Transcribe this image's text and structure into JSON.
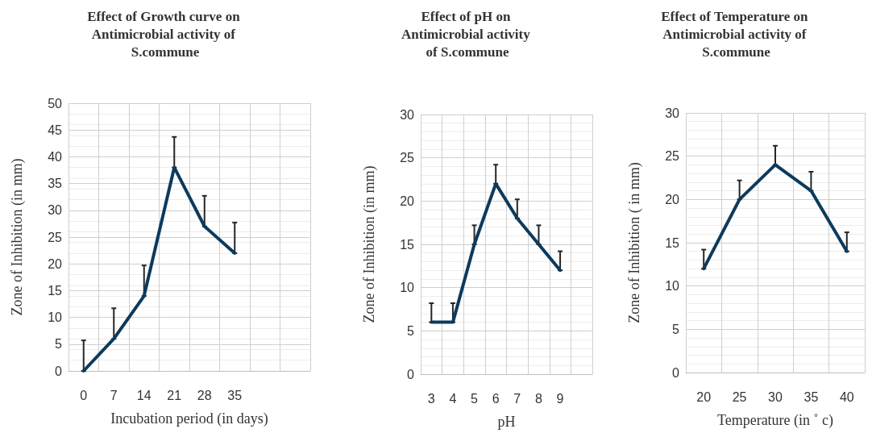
{
  "chart_data": [
    {
      "type": "line",
      "title": "Effect of Growth curve on Antimicrobial activity of S.commune",
      "xlabel": "Incubation period (in days)",
      "ylabel": "Zone of Inhibition (in mm)",
      "categories": [
        "0",
        "7",
        "14",
        "21",
        "28",
        "35",
        null,
        null
      ],
      "series": [
        {
          "color": "#0d3a5c",
          "values": [
            0,
            6,
            14,
            38,
            27,
            22,
            null,
            null
          ],
          "errors": [
            [
              0,
              5.7
            ],
            [
              6,
              11.7
            ],
            [
              14,
              19.7
            ],
            [
              38,
              43.7
            ],
            [
              27,
              32.7
            ],
            [
              22,
              27.7
            ],
            null,
            null
          ]
        }
      ],
      "ylim": [
        0,
        50
      ],
      "yticks": [
        0,
        5,
        10,
        15,
        20,
        25,
        30,
        35,
        40,
        45,
        50
      ],
      "grid": true,
      "marker": "none",
      "line_style": "solid"
    },
    {
      "type": "line",
      "title": "Effect of pH on Antimicrobial activity of S.commune",
      "xlabel": "pH",
      "ylabel": "Zone of Inhibition (in mm)",
      "categories": [
        "3",
        "4",
        "5",
        "6",
        "7",
        "8",
        "9",
        null
      ],
      "series": [
        {
          "color": "#0d3a5c",
          "values": [
            6,
            6,
            15,
            22,
            18,
            15,
            12,
            null
          ],
          "errors": [
            [
              6,
              8.2
            ],
            [
              6,
              8.2
            ],
            [
              15,
              17.2
            ],
            [
              22,
              24.2
            ],
            [
              18,
              20.2
            ],
            [
              15,
              17.2
            ],
            [
              12,
              14.2
            ],
            null
          ]
        }
      ],
      "ylim": [
        0,
        30
      ],
      "yticks": [
        0,
        5,
        10,
        15,
        20,
        25,
        30
      ],
      "grid": true,
      "marker": "none",
      "line_style": "solid"
    },
    {
      "type": "line",
      "title": "Effect of Temperature on Antimicrobial activity of S.commune",
      "xlabel": "Temperature (in ˚ c)",
      "ylabel": "Zone of Inhibition ( in mm)",
      "categories": [
        "20",
        "25",
        "30",
        "35",
        "40"
      ],
      "series": [
        {
          "color": "#0d3a5c",
          "values": [
            12,
            20,
            24,
            21,
            14
          ],
          "errors": [
            [
              12,
              14.2
            ],
            [
              20,
              22.2
            ],
            [
              24,
              26.2
            ],
            [
              21,
              23.2
            ],
            [
              14,
              16.2
            ]
          ]
        }
      ],
      "ylim": [
        0,
        30
      ],
      "yticks": [
        0,
        5,
        10,
        15,
        20,
        25,
        30
      ],
      "grid": true,
      "marker": "none",
      "line_style": "solid"
    }
  ]
}
